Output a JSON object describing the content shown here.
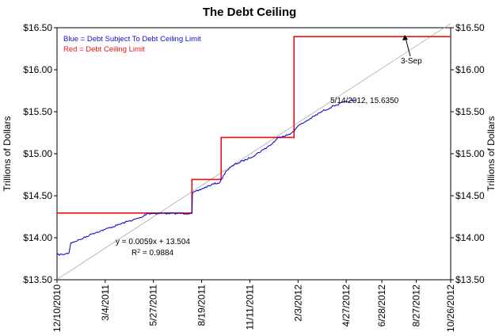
{
  "chart_data": {
    "type": "line",
    "title": "The Debt Ceiling",
    "ylabel": "Trillions of Dollars",
    "ylim": [
      13.5,
      16.5
    ],
    "yticks": [
      "$13.50",
      "$14.00",
      "$14.50",
      "$15.00",
      "$15.50",
      "$16.00",
      "$16.50"
    ],
    "ytick_values": [
      13.5,
      14.0,
      14.5,
      15.0,
      15.5,
      16.0,
      16.5
    ],
    "xlim": [
      "2010-12-10",
      "2012-10-26"
    ],
    "xticks": [
      "12/10/2010",
      "3/4/2011",
      "5/27/2011",
      "8/19/2011",
      "11/11/2011",
      "2/3/2012",
      "4/27/2012",
      "6/28/2012",
      "8/27/2012",
      "10/26/2012"
    ],
    "xtick_dates": [
      "2010-12-10",
      "2011-03-04",
      "2011-05-27",
      "2011-08-19",
      "2011-11-11",
      "2012-02-03",
      "2012-04-27",
      "2012-06-28",
      "2012-08-27",
      "2012-10-26"
    ],
    "legend": {
      "position": "top-left",
      "entries": [
        {
          "text": "Blue = Debt Subject To Debt Ceiling Limit",
          "color": "#1010cc"
        },
        {
          "text": "Red = Debt Ceiling Limit",
          "color": "#ee1111"
        }
      ]
    },
    "series": [
      {
        "color": "#1010cc",
        "points": [
          [
            "2010-12-10",
            13.8
          ],
          [
            "2010-12-20",
            13.8
          ],
          [
            "2010-12-31",
            13.82
          ],
          [
            "2011-01-03",
            13.94
          ],
          [
            "2011-01-20",
            13.98
          ],
          [
            "2011-02-10",
            14.05
          ],
          [
            "2011-03-04",
            14.1
          ],
          [
            "2011-03-25",
            14.15
          ],
          [
            "2011-04-15",
            14.2
          ],
          [
            "2011-05-06",
            14.24
          ],
          [
            "2011-05-16",
            14.29
          ],
          [
            "2011-08-02",
            14.29
          ],
          [
            "2011-08-03",
            14.53
          ],
          [
            "2011-08-19",
            14.58
          ],
          [
            "2011-09-05",
            14.63
          ],
          [
            "2011-09-20",
            14.66
          ],
          [
            "2011-09-30",
            14.79
          ],
          [
            "2011-10-15",
            14.87
          ],
          [
            "2011-11-11",
            14.95
          ],
          [
            "2011-12-05",
            15.05
          ],
          [
            "2011-12-20",
            15.12
          ],
          [
            "2012-01-01",
            15.2
          ],
          [
            "2012-01-20",
            15.23
          ],
          [
            "2012-01-30",
            15.3
          ],
          [
            "2012-02-03",
            15.33
          ],
          [
            "2012-02-20",
            15.4
          ],
          [
            "2012-03-15",
            15.5
          ],
          [
            "2012-04-05",
            15.57
          ],
          [
            "2012-04-27",
            15.62
          ],
          [
            "2012-05-14",
            15.635
          ]
        ]
      },
      {
        "color": "#ee1111",
        "points": [
          [
            "2010-12-10",
            14.294
          ],
          [
            "2011-08-02",
            14.294
          ],
          [
            "2011-08-02",
            14.694
          ],
          [
            "2011-09-22",
            14.694
          ],
          [
            "2011-09-22",
            15.194
          ],
          [
            "2012-01-27",
            15.194
          ],
          [
            "2012-01-27",
            16.394
          ],
          [
            "2012-10-26",
            16.394
          ]
        ]
      },
      {
        "color": "#aaaaaa",
        "points": [
          [
            "2010-12-10",
            13.504
          ],
          [
            "2012-10-26",
            16.55
          ]
        ]
      }
    ],
    "annotations": [
      {
        "text": "5/14/2012, 15.6350",
        "x": "2012-05-14",
        "y": 15.635,
        "color": "#1010cc"
      },
      {
        "text": "3-Sep",
        "x": "2012-09-03",
        "y": 16.394,
        "color": "#000000",
        "arrow": true
      },
      {
        "text": "y = 0.0059x + 13.504",
        "color": "#000000"
      },
      {
        "text": "R",
        "sup": "2",
        "rest": " = 0.9884",
        "color": "#000000"
      }
    ]
  }
}
